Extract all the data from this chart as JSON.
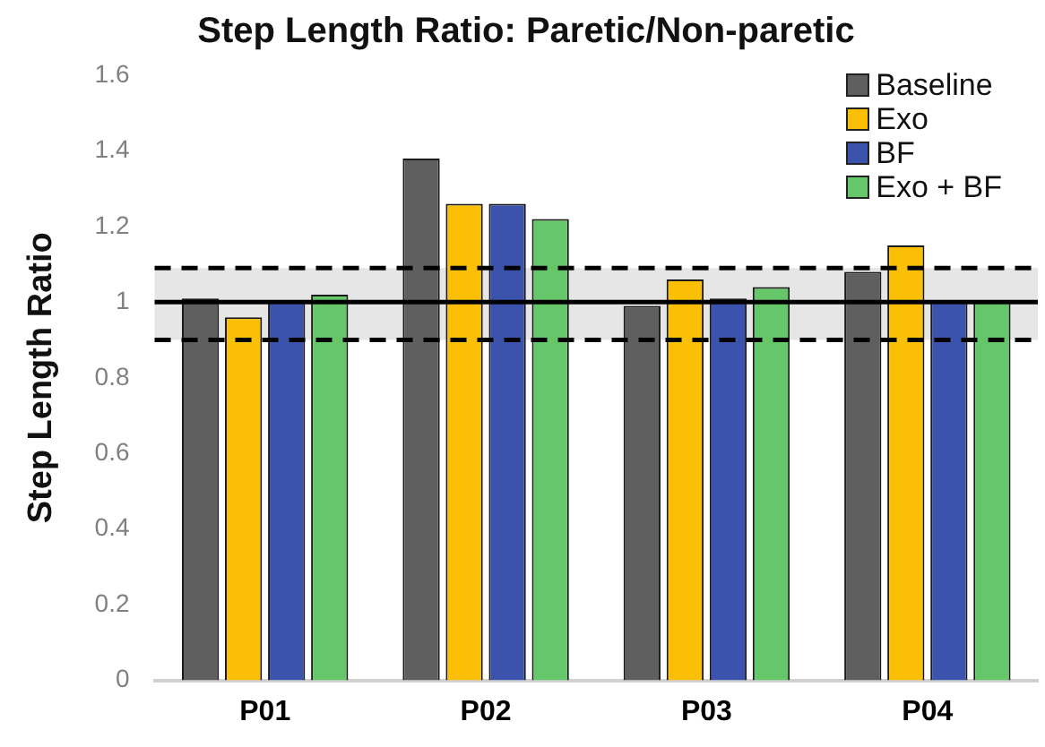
{
  "chart_data": {
    "type": "bar",
    "title": "Step Length Ratio: Paretic/Non-paretic",
    "ylabel": "Step Length Ratio",
    "categories": [
      "P01",
      "P02",
      "P03",
      "P04"
    ],
    "series": [
      {
        "name": "Baseline",
        "color": "#5f5f5f",
        "values": [
          1.01,
          1.38,
          0.99,
          1.08
        ]
      },
      {
        "name": "Exo",
        "color": "#fbbf05",
        "values": [
          0.96,
          1.26,
          1.06,
          1.15
        ]
      },
      {
        "name": "BF",
        "color": "#3b53ad",
        "values": [
          1.0,
          1.26,
          1.01,
          1.0
        ]
      },
      {
        "name": "Exo + BF",
        "color": "#66c66a",
        "values": [
          1.02,
          1.22,
          1.04,
          1.0
        ]
      }
    ],
    "ylim": [
      0,
      1.6
    ],
    "yticks": [
      0,
      0.2,
      0.4,
      0.6,
      0.8,
      1,
      1.2,
      1.4,
      1.6
    ],
    "ref_lines": [
      {
        "axis": "y",
        "value": 1,
        "line_style": "solid",
        "color": "#000000"
      },
      {
        "axis": "y",
        "value": 1.09,
        "line_style": "dashed",
        "color": "#000000"
      },
      {
        "axis": "y",
        "value": 0.9,
        "line_style": "dashed",
        "color": "#000000"
      }
    ],
    "bands": [
      {
        "axis": "y",
        "from": 0.9,
        "to": 1.09,
        "color": "#e6e6e6"
      }
    ],
    "grid": false,
    "legend": "top right"
  }
}
